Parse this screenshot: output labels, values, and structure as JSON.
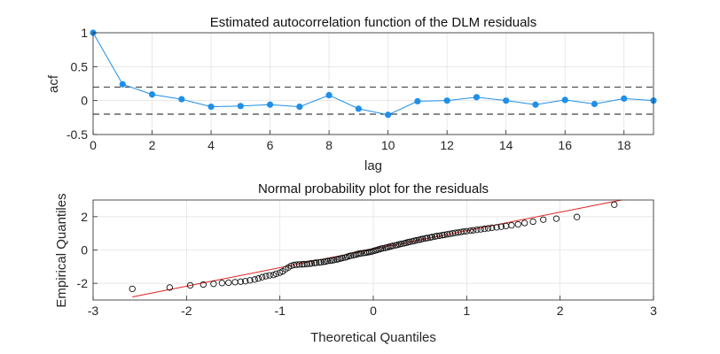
{
  "chart_data": [
    {
      "type": "line",
      "title": "Estimated autocorrelation function of the DLM residuals",
      "xlabel": "lag",
      "ylabel": "acf",
      "xlim": [
        0,
        19
      ],
      "ylim": [
        -0.5,
        1
      ],
      "xticks": [
        0,
        2,
        4,
        6,
        8,
        10,
        12,
        14,
        16,
        18
      ],
      "yticks": [
        -0.5,
        0,
        0.5,
        1
      ],
      "ytick_labels": [
        "-0.5",
        "0",
        "0.5",
        "1"
      ],
      "grid": true,
      "series": [
        {
          "x": [
            0,
            1,
            2,
            3,
            4,
            5,
            6,
            7,
            8,
            9,
            10,
            11,
            12,
            13,
            14,
            15,
            16,
            17,
            18,
            19
          ],
          "values": [
            1.0,
            0.24,
            0.09,
            0.02,
            -0.09,
            -0.08,
            -0.06,
            -0.09,
            0.08,
            -0.12,
            -0.21,
            -0.01,
            0.0,
            0.05,
            0.0,
            -0.06,
            0.01,
            -0.05,
            0.03,
            0.0
          ],
          "color": "#1f8fe8"
        }
      ],
      "confidence_bounds": [
        0.2,
        -0.2
      ]
    },
    {
      "type": "scatter",
      "title": "Normal probability plot for the residuals",
      "xlabel": "Theoretical Quantiles",
      "ylabel": "Empirical Quantiles",
      "xlim": [
        -3,
        3
      ],
      "ylim": [
        -3,
        3
      ],
      "xticks": [
        -3,
        -2,
        -1,
        0,
        1,
        2,
        3
      ],
      "yticks": [
        -2,
        0,
        2
      ],
      "grid": true,
      "reference_line": {
        "slope": 1.11,
        "intercept": 0.05,
        "color": "#e02020"
      },
      "points": [
        [
          -2.58,
          -2.33
        ],
        [
          -2.18,
          -2.25
        ],
        [
          -1.96,
          -2.12
        ],
        [
          -1.82,
          -2.07
        ],
        [
          -1.71,
          -2.03
        ],
        [
          -1.62,
          -1.98
        ],
        [
          -1.55,
          -1.96
        ],
        [
          -1.48,
          -1.93
        ],
        [
          -1.42,
          -1.9
        ],
        [
          -1.37,
          -1.87
        ],
        [
          -1.32,
          -1.82
        ],
        [
          -1.27,
          -1.77
        ],
        [
          -1.23,
          -1.71
        ],
        [
          -1.19,
          -1.63
        ],
        [
          -1.15,
          -1.57
        ],
        [
          -1.11,
          -1.52
        ],
        [
          -1.07,
          -1.5
        ],
        [
          -1.04,
          -1.43
        ],
        [
          -1.0,
          -1.36
        ],
        [
          -0.97,
          -1.28
        ],
        [
          -0.94,
          -1.15
        ],
        [
          -0.91,
          -1.05
        ],
        [
          -0.88,
          -0.95
        ],
        [
          -0.85,
          -0.9
        ],
        [
          -0.82,
          -0.88
        ],
        [
          -0.79,
          -0.87
        ],
        [
          -0.76,
          -0.86
        ],
        [
          -0.74,
          -0.85
        ],
        [
          -0.71,
          -0.84
        ],
        [
          -0.68,
          -0.82
        ],
        [
          -0.66,
          -0.8
        ],
        [
          -0.63,
          -0.78
        ],
        [
          -0.61,
          -0.76
        ],
        [
          -0.58,
          -0.75
        ],
        [
          -0.56,
          -0.73
        ],
        [
          -0.53,
          -0.71
        ],
        [
          -0.51,
          -0.69
        ],
        [
          -0.49,
          -0.66
        ],
        [
          -0.46,
          -0.64
        ],
        [
          -0.44,
          -0.62
        ],
        [
          -0.42,
          -0.6
        ],
        [
          -0.39,
          -0.57
        ],
        [
          -0.37,
          -0.54
        ],
        [
          -0.35,
          -0.51
        ],
        [
          -0.33,
          -0.48
        ],
        [
          -0.3,
          -0.45
        ],
        [
          -0.28,
          -0.41
        ],
        [
          -0.26,
          -0.37
        ],
        [
          -0.24,
          -0.34
        ],
        [
          -0.21,
          -0.31
        ],
        [
          -0.19,
          -0.28
        ],
        [
          -0.17,
          -0.25
        ],
        [
          -0.15,
          -0.22
        ],
        [
          -0.13,
          -0.2
        ],
        [
          -0.1,
          -0.18
        ],
        [
          -0.08,
          -0.16
        ],
        [
          -0.06,
          -0.14
        ],
        [
          -0.04,
          -0.12
        ],
        [
          -0.02,
          -0.1
        ],
        [
          0.0,
          -0.06
        ],
        [
          0.02,
          -0.03
        ],
        [
          0.04,
          0.0
        ],
        [
          0.06,
          0.04
        ],
        [
          0.08,
          0.07
        ],
        [
          0.1,
          0.1
        ],
        [
          0.13,
          0.13
        ],
        [
          0.15,
          0.16
        ],
        [
          0.17,
          0.19
        ],
        [
          0.19,
          0.22
        ],
        [
          0.21,
          0.25
        ],
        [
          0.24,
          0.28
        ],
        [
          0.26,
          0.31
        ],
        [
          0.28,
          0.34
        ],
        [
          0.3,
          0.37
        ],
        [
          0.33,
          0.4
        ],
        [
          0.35,
          0.43
        ],
        [
          0.37,
          0.46
        ],
        [
          0.39,
          0.49
        ],
        [
          0.42,
          0.52
        ],
        [
          0.44,
          0.55
        ],
        [
          0.46,
          0.58
        ],
        [
          0.49,
          0.61
        ],
        [
          0.51,
          0.64
        ],
        [
          0.53,
          0.67
        ],
        [
          0.56,
          0.7
        ],
        [
          0.58,
          0.72
        ],
        [
          0.61,
          0.75
        ],
        [
          0.63,
          0.78
        ],
        [
          0.66,
          0.81
        ],
        [
          0.68,
          0.84
        ],
        [
          0.71,
          0.86
        ],
        [
          0.74,
          0.89
        ],
        [
          0.76,
          0.91
        ],
        [
          0.79,
          0.94
        ],
        [
          0.82,
          0.97
        ],
        [
          0.85,
          1.0
        ],
        [
          0.88,
          1.03
        ],
        [
          0.91,
          1.05
        ],
        [
          0.94,
          1.08
        ],
        [
          0.97,
          1.11
        ],
        [
          1.0,
          1.13
        ],
        [
          1.04,
          1.16
        ],
        [
          1.07,
          1.18
        ],
        [
          1.11,
          1.21
        ],
        [
          1.15,
          1.24
        ],
        [
          1.19,
          1.27
        ],
        [
          1.23,
          1.3
        ],
        [
          1.27,
          1.33
        ],
        [
          1.32,
          1.36
        ],
        [
          1.37,
          1.4
        ],
        [
          1.42,
          1.44
        ],
        [
          1.48,
          1.48
        ],
        [
          1.55,
          1.54
        ],
        [
          1.62,
          1.62
        ],
        [
          1.71,
          1.7
        ],
        [
          1.82,
          1.82
        ],
        [
          1.96,
          1.88
        ],
        [
          2.18,
          1.98
        ],
        [
          2.58,
          2.72
        ]
      ]
    }
  ]
}
